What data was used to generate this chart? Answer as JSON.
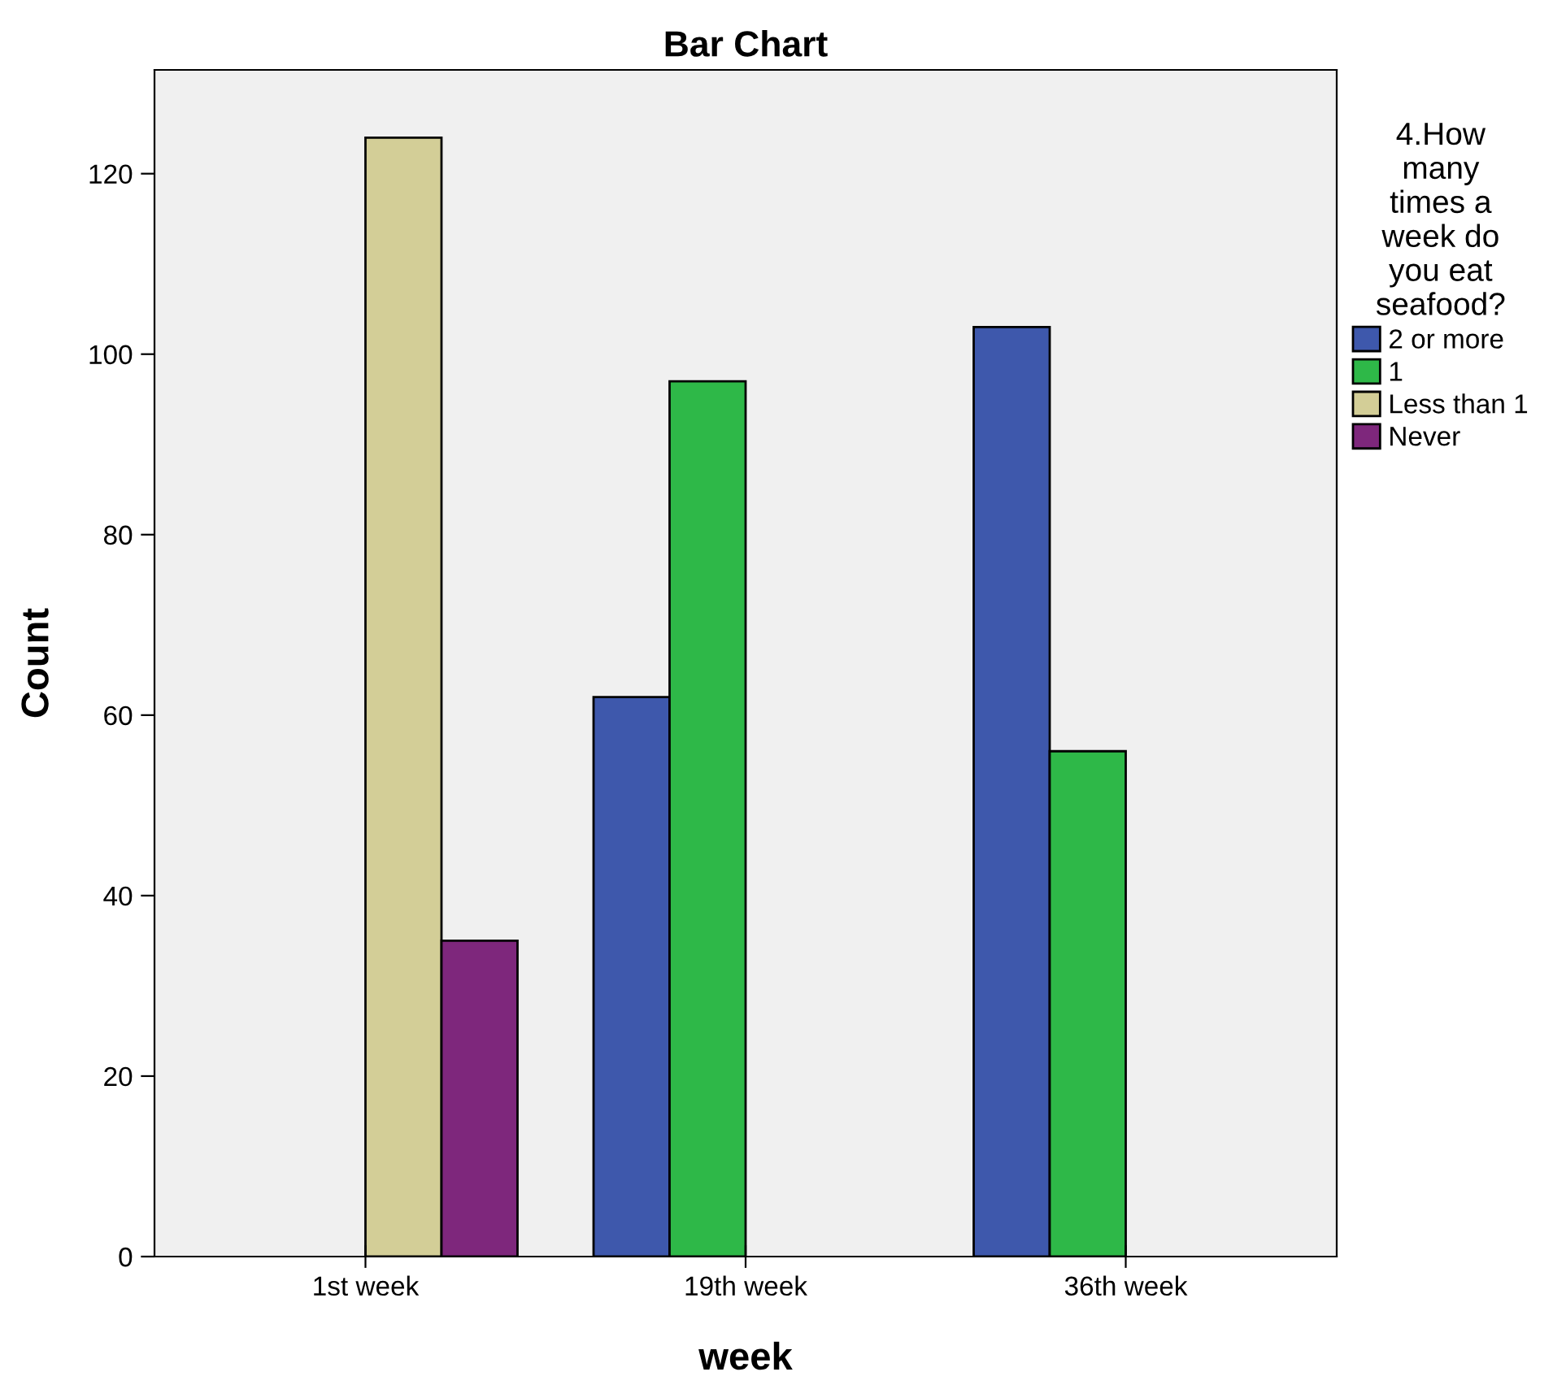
{
  "chart_data": {
    "type": "bar",
    "title": "Bar Chart",
    "xlabel": "week",
    "ylabel": "Count",
    "legend_title": "4.How\nmany\ntimes a\nweek do\nyou eat\nseafood?",
    "categories": [
      "1st week",
      "19th week",
      "36th week"
    ],
    "series": [
      {
        "name": "2 or more",
        "color": "#3e58ac",
        "values": [
          null,
          62,
          103
        ]
      },
      {
        "name": "1",
        "color": "#2eb848",
        "values": [
          null,
          97,
          56
        ]
      },
      {
        "name": "Less than 1",
        "color": "#d3ce97",
        "values": [
          124,
          null,
          null
        ]
      },
      {
        "name": "Never",
        "color": "#7e277c",
        "values": [
          35,
          null,
          null
        ]
      }
    ],
    "ylim": [
      0,
      131.5
    ],
    "yticks": [
      0,
      20,
      40,
      60,
      80,
      100,
      120
    ],
    "grid": false,
    "legend": "right"
  }
}
